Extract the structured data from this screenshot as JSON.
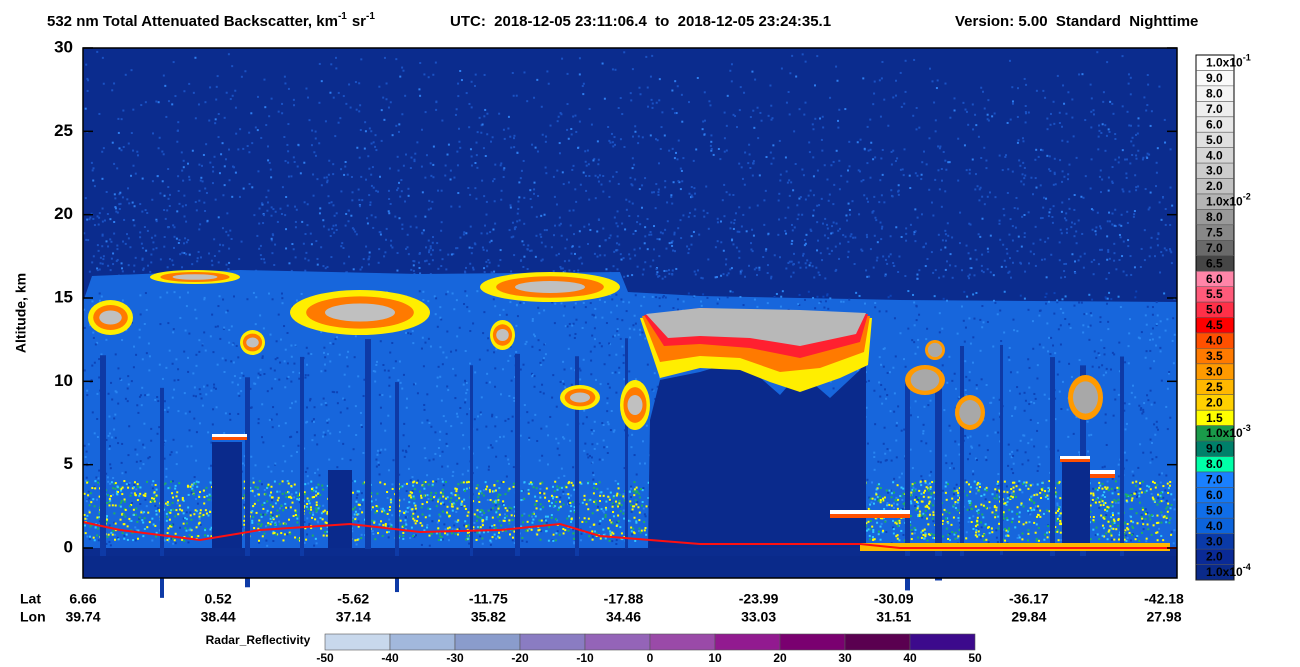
{
  "chart_data": {
    "type": "curtain",
    "title": {
      "text": "532 nm Total Attenuated Backscatter, km",
      "exp1": "-1",
      "unit2": "sr",
      "exp2": "-1"
    },
    "utc": "UTC:  2018-12-05 23:11:06.4  to  2018-12-05 23:24:35.1",
    "version": "Version: 5.00  Standard  Nighttime",
    "y_label": "Altitude, km",
    "ylim": [
      -1.8,
      30
    ],
    "yticks": [
      0,
      5,
      10,
      15,
      20,
      25,
      30
    ],
    "x_rows": [
      {
        "name": "Lat",
        "values": [
          6.66,
          0.52,
          -5.62,
          -11.75,
          -17.88,
          -23.99,
          -30.09,
          -36.17,
          -42.18
        ]
      },
      {
        "name": "Lon",
        "values": [
          39.74,
          38.44,
          37.14,
          35.82,
          34.46,
          33.03,
          31.51,
          29.84,
          27.98
        ]
      }
    ],
    "colorbar": {
      "labels": [
        {
          "mantissa": "1.0x10",
          "exp": "-1"
        },
        "9.0",
        "8.0",
        "7.0",
        "6.0",
        "5.0",
        "4.0",
        "3.0",
        "2.0",
        {
          "mantissa": "1.0x10",
          "exp": "-2"
        },
        "8.0",
        "7.5",
        "7.0",
        "6.5",
        "6.0",
        "5.5",
        "5.0",
        "4.5",
        "4.0",
        "3.5",
        "3.0",
        "2.5",
        "2.0",
        "1.5",
        {
          "mantissa": "1.0x10",
          "exp": "-3"
        },
        "9.0",
        "8.0",
        "7.0",
        "6.0",
        "5.0",
        "4.0",
        "3.0",
        "2.0",
        {
          "mantissa": "1.0x10",
          "exp": "-4"
        }
      ],
      "colors": [
        "#ffffff",
        "#fafafa",
        "#f4f4f4",
        "#eeeeee",
        "#e8e8e8",
        "#e0e0e0",
        "#d6d6d6",
        "#cccccc",
        "#c2c2c2",
        "#b4b4b4",
        "#9a9a9a",
        "#888888",
        "#6a6a6a",
        "#464646",
        "#ff85a8",
        "#ff5a7a",
        "#ff3048",
        "#ff0000",
        "#ff5000",
        "#ff7a00",
        "#ff9a00",
        "#ffb800",
        "#ffd000",
        "#ffff00",
        "#1a9a4a",
        "#00806a",
        "#00ffa8",
        "#1a80ff",
        "#1478f5",
        "#106ee8",
        "#0c64dc",
        "#0a3aa8",
        "#0a2a96",
        "#0a2a8a"
      ]
    },
    "radar": {
      "label": "Radar_Reflectivity",
      "ticks": [
        -50,
        -40,
        -30,
        -20,
        -10,
        0,
        10,
        20,
        30,
        40,
        50
      ],
      "colors": [
        "#c8d8ec",
        "#a2b8dc",
        "#8a9ccc",
        "#8a7cc2",
        "#9464b8",
        "#9a4aa8",
        "#921a90",
        "#7a0070",
        "#5a0050",
        "#3c0a8c"
      ]
    }
  }
}
